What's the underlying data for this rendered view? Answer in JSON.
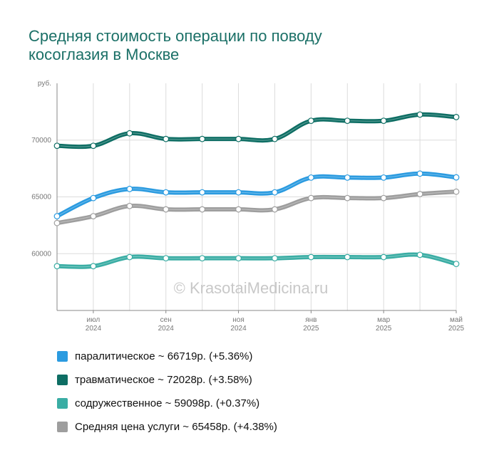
{
  "title_lines": [
    "Средняя стоимость операции по поводу",
    "косоглазия в Москве"
  ],
  "watermark": "© KrasotaiMedicina.ru",
  "chart_data": {
    "type": "line",
    "y_unit_label": "руб.",
    "ylim": [
      55000,
      75000
    ],
    "yticks": [
      60000,
      65000,
      70000
    ],
    "ytick_labels": [
      "60000",
      "65000",
      "70000"
    ],
    "x_tick_labels": [
      {
        "line1": "июл",
        "line2": "2024"
      },
      {
        "line1": "сен",
        "line2": "2024"
      },
      {
        "line1": "ноя",
        "line2": "2024"
      },
      {
        "line1": "янв",
        "line2": "2025"
      },
      {
        "line1": "мар",
        "line2": "2025"
      },
      {
        "line1": "май",
        "line2": "2025"
      }
    ],
    "grid": true,
    "series": [
      {
        "name": "травматическое",
        "color": "#0e6e64",
        "legend": "травматическое ~ 72028р. (+3.58%)",
        "values": [
          69500,
          69500,
          70600,
          70100,
          70100,
          70100,
          70100,
          71700,
          71700,
          71700,
          72250,
          72028
        ]
      },
      {
        "name": "паралитическое",
        "color": "#2b9be0",
        "legend": "паралитическое ~ 66719р. (+5.36%)",
        "values": [
          63300,
          64900,
          65700,
          65400,
          65400,
          65400,
          65400,
          66700,
          66700,
          66700,
          67050,
          66719
        ]
      },
      {
        "name": "Средняя цена услуги",
        "color": "#9e9e9e",
        "legend": "Средняя цена услуги ~ 65458р. (+4.38%)",
        "values": [
          62700,
          63300,
          64200,
          63900,
          63900,
          63900,
          63900,
          64900,
          64900,
          64900,
          65250,
          65458
        ]
      },
      {
        "name": "содружественное",
        "color": "#3aada4",
        "legend": "содружественное ~ 59098р. (+0.37%)",
        "values": [
          58900,
          58900,
          59700,
          59600,
          59600,
          59600,
          59600,
          59700,
          59700,
          59700,
          59900,
          59098
        ]
      }
    ],
    "legend_order": [
      "паралитическое",
      "травматическое",
      "содружественное",
      "Средняя цена услуги"
    ]
  }
}
